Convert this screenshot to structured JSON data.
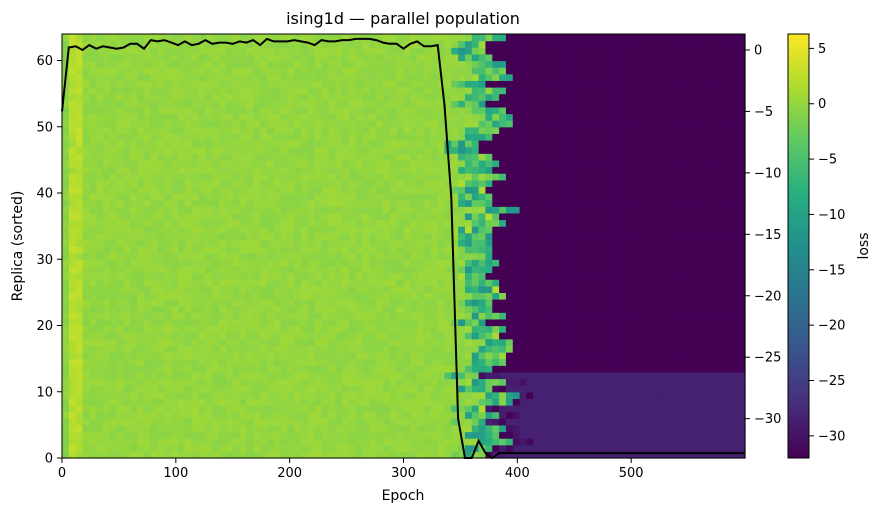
{
  "chart_data": {
    "type": "heatmap",
    "title": "ising1d — parallel population",
    "xlabel": "Epoch",
    "ylabel": "Replica (sorted)",
    "xlim": [
      0,
      600
    ],
    "ylim": [
      0,
      64
    ],
    "x_ticks": [
      0,
      100,
      200,
      300,
      400,
      500
    ],
    "y_ticks": [
      0,
      10,
      20,
      30,
      40,
      50,
      60
    ],
    "heatmap": {
      "colormap": "viridis",
      "x_bins": 100,
      "y_bins": 64,
      "epoch_max": 600,
      "replicas": 64,
      "cells_description_values": {
        "plateau_loss": 0.0,
        "collapsed_loss": -32.0,
        "collapsed_partial_loss": -28.5,
        "collapse_epoch_center": 380,
        "partial_rows_below": 13
      }
    },
    "colorbar": {
      "label": "loss",
      "range": [
        -32,
        6.3
      ],
      "ticks": [
        5,
        0,
        -5,
        -10,
        -15,
        -20,
        -25,
        -30
      ]
    },
    "secondary_axis": {
      "range": [
        -33.2,
        1.3
      ],
      "ticks": [
        0,
        -5,
        -10,
        -15,
        -20,
        -25,
        -30
      ]
    },
    "series": [
      {
        "x": [
          0,
          6,
          12,
          18,
          24,
          30,
          36,
          42,
          48,
          54,
          60,
          66,
          72,
          78,
          84,
          90,
          96,
          102,
          108,
          114,
          120,
          126,
          132,
          138,
          144,
          150,
          156,
          162,
          168,
          174,
          180,
          186,
          192,
          198,
          204,
          210,
          216,
          222,
          228,
          234,
          240,
          246,
          252,
          258,
          264,
          270,
          276,
          282,
          288,
          294,
          300,
          306,
          312,
          318,
          324,
          330,
          336,
          342,
          348,
          354,
          360,
          366,
          372,
          378,
          384,
          390,
          396,
          402,
          600
        ],
        "y": [
          -5.0,
          0.2,
          0.3,
          0.0,
          0.4,
          0.1,
          0.3,
          0.2,
          0.1,
          0.2,
          0.5,
          0.5,
          0.1,
          0.8,
          0.7,
          0.8,
          0.6,
          0.4,
          0.7,
          0.4,
          0.5,
          0.8,
          0.5,
          0.6,
          0.6,
          0.5,
          0.7,
          0.6,
          0.8,
          0.4,
          0.9,
          0.7,
          0.7,
          0.7,
          0.8,
          0.7,
          0.6,
          0.4,
          0.8,
          0.7,
          0.7,
          0.8,
          0.8,
          0.9,
          0.9,
          0.9,
          0.8,
          0.6,
          0.5,
          0.5,
          0.1,
          0.5,
          0.7,
          0.3,
          0.3,
          0.4,
          -4.5,
          -12.0,
          -30.0,
          -35.0,
          -35.0,
          -31.8,
          -32.8,
          -33.2,
          -32.8,
          -32.8,
          -32.8,
          -32.8,
          -32.8
        ]
      }
    ]
  }
}
